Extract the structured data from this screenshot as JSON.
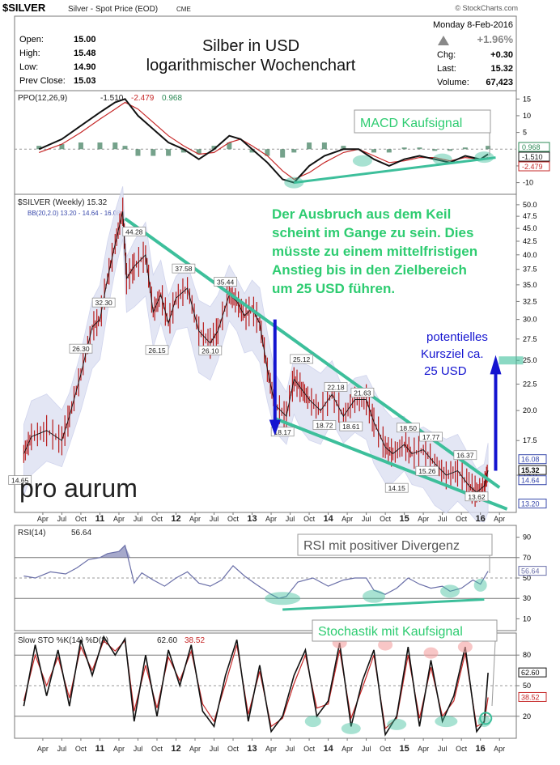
{
  "header": {
    "symbol": "$SILVER",
    "description": "Silver - Spot Price (EOD)",
    "exchange": "CME",
    "source": "© StockCharts.com",
    "date": "Monday  8-Feb-2016",
    "change_pct": "+1.96%",
    "chart_title_line1": "Silber in USD",
    "chart_title_line2": "logarithmischer Wochenchart",
    "stats_left": [
      {
        "label": "Open:",
        "value": "15.00"
      },
      {
        "label": "High:",
        "value": "15.48"
      },
      {
        "label": "Low:",
        "value": "14.90"
      },
      {
        "label": "Prev Close:",
        "value": "15.03"
      }
    ],
    "stats_right": [
      {
        "label": "Chg:",
        "value": "+0.30"
      },
      {
        "label": "Last:",
        "value": "15.32"
      },
      {
        "label": "Volume:",
        "value": "67,423"
      }
    ]
  },
  "logo": "pro aurum",
  "colors": {
    "price": "#b71c1c",
    "annotation_green": "#3dbf9b",
    "annotation_text": "#2ecc71",
    "target_blue": "#1414d0",
    "bb_fill": "#dde0f2",
    "rsi_line": "#6a6fa8"
  },
  "chart_data": [
    {
      "type": "bar",
      "panel": "ppo",
      "label": "PPO(12,26,9)",
      "legend_values": [
        "-1.510",
        "-2.479",
        "0.968"
      ],
      "ylim": [
        -13,
        17
      ],
      "y_ticks": [
        -10,
        -5,
        5,
        10,
        15
      ],
      "axis_badges": [
        "0.968",
        "-1.510",
        "-2.479"
      ],
      "annotation": "MACD Kaufsignal",
      "series": [
        {
          "name": "PPO",
          "x": [
            2010.2,
            2010.5,
            2010.75,
            2011.0,
            2011.2,
            2011.33,
            2011.5,
            2011.7,
            2011.9,
            2012.1,
            2012.3,
            2012.5,
            2012.7,
            2012.85,
            2013.0,
            2013.2,
            2013.4,
            2013.55,
            2013.75,
            2013.95,
            2014.2,
            2014.4,
            2014.6,
            2014.8,
            2015.0,
            2015.2,
            2015.4,
            2015.6,
            2015.8,
            2016.0,
            2016.1
          ],
          "values": [
            0,
            3,
            7,
            11,
            14,
            15,
            10,
            6,
            2,
            0,
            -3,
            0,
            4,
            3,
            0,
            -4,
            -9,
            -10,
            -5,
            -2,
            0,
            0,
            -3,
            -5,
            -3,
            -2,
            -3,
            -4,
            -2,
            -3,
            -1.5
          ]
        },
        {
          "name": "Signal",
          "x": [
            2010.2,
            2010.5,
            2010.75,
            2011.0,
            2011.2,
            2011.33,
            2011.5,
            2011.7,
            2011.9,
            2012.1,
            2012.3,
            2012.5,
            2012.7,
            2012.85,
            2013.0,
            2013.2,
            2013.4,
            2013.55,
            2013.75,
            2013.95,
            2014.2,
            2014.4,
            2014.6,
            2014.8,
            2015.0,
            2015.2,
            2015.4,
            2015.6,
            2015.8,
            2016.0,
            2016.1
          ],
          "values": [
            -1,
            1.5,
            5,
            9,
            12,
            14,
            12,
            8,
            4,
            1,
            -1.5,
            -1,
            2,
            3,
            1,
            -2,
            -6.5,
            -9,
            -7,
            -4,
            -1,
            0,
            -2,
            -4,
            -3.5,
            -2.5,
            -2.5,
            -3.5,
            -2.5,
            -3,
            -2.5
          ]
        },
        {
          "name": "Histogram",
          "x": [
            2010.2,
            2010.5,
            2010.75,
            2011.0,
            2011.2,
            2011.33,
            2011.5,
            2011.7,
            2011.9,
            2012.1,
            2012.3,
            2012.5,
            2012.7,
            2012.85,
            2013.0,
            2013.2,
            2013.4,
            2013.55,
            2013.75,
            2013.95,
            2014.2,
            2014.4,
            2014.6,
            2014.8,
            2015.0,
            2015.2,
            2015.4,
            2015.6,
            2015.8,
            2016.0,
            2016.1
          ],
          "values": [
            1,
            1.5,
            2,
            2,
            2,
            1,
            -2,
            -2,
            -2,
            -1,
            -1.5,
            1,
            2,
            0,
            -1,
            -2,
            -2.5,
            -1,
            2,
            2,
            1,
            0,
            -1,
            -1,
            0.5,
            0.5,
            -0.5,
            -0.5,
            0.5,
            0,
            1
          ]
        }
      ]
    },
    {
      "type": "line",
      "panel": "price",
      "label": "$SILVER (Weekly) 15.32",
      "bb_label": "BB(20,2.0) 13.20 - 14.64 - 16.08",
      "ylim": [
        12.8,
        52
      ],
      "scale": "log",
      "y_ticks": [
        50,
        47.5,
        45,
        42.5,
        40,
        37.5,
        35,
        32.5,
        30,
        27.5,
        25,
        22.5,
        20,
        17.5,
        15
      ],
      "axis_badges": [
        "16.08",
        "15.32",
        "14.64",
        "13.20"
      ],
      "x_ticks": [
        "Apr",
        "Jul",
        "Oct",
        "11",
        "Apr",
        "Jul",
        "Oct",
        "12",
        "Apr",
        "Jul",
        "Oct",
        "13",
        "Apr",
        "Jul",
        "Oct",
        "14",
        "Apr",
        "Jul",
        "Oct",
        "15",
        "Apr",
        "Jul",
        "Oct",
        "16",
        "Apr"
      ],
      "series": [
        {
          "name": "Close",
          "x": [
            2010.0,
            2010.1,
            2010.3,
            2010.5,
            2010.6,
            2010.75,
            2010.9,
            2011.0,
            2011.1,
            2011.2,
            2011.3,
            2011.35,
            2011.45,
            2011.6,
            2011.7,
            2011.8,
            2011.9,
            2012.0,
            2012.15,
            2012.3,
            2012.45,
            2012.55,
            2012.7,
            2012.8,
            2012.9,
            2013.0,
            2013.1,
            2013.2,
            2013.3,
            2013.45,
            2013.55,
            2013.65,
            2013.75,
            2013.9,
            2014.05,
            2014.2,
            2014.35,
            2014.5,
            2014.6,
            2014.75,
            2014.85,
            2015.0,
            2015.1,
            2015.25,
            2015.4,
            2015.55,
            2015.7,
            2015.85,
            2015.95,
            2016.05,
            2016.1
          ],
          "values": [
            16.5,
            17.8,
            18.3,
            17.5,
            19.5,
            23.5,
            29.0,
            30.0,
            36.0,
            42.0,
            48.5,
            36.0,
            38.0,
            40.0,
            31.0,
            33.5,
            29.5,
            33.0,
            34.5,
            28.5,
            27.0,
            28.5,
            33.5,
            32.5,
            30.5,
            31.5,
            29.5,
            24.0,
            20.5,
            19.5,
            23.0,
            22.0,
            21.0,
            20.0,
            21.5,
            19.5,
            21.0,
            21.0,
            19.0,
            17.0,
            16.5,
            17.2,
            16.5,
            16.8,
            15.8,
            15.0,
            15.3,
            14.3,
            13.9,
            14.3,
            15.32
          ]
        }
      ],
      "swing_labels": [
        "44.28",
        "37.58",
        "35.44",
        "32.30",
        "26.30",
        "26.15",
        "26.10",
        "25.12",
        "22.18",
        "21.63",
        "18.17",
        "18.72",
        "18.61",
        "18.50",
        "17.77",
        "16.37",
        "15.26",
        "14.15",
        "13.62",
        "14.65"
      ],
      "annotations": [
        "Der Ausbruch aus dem Keil scheint im Gange zu sein. Dies müsste zu einem mittelfristigen Anstieg bis in den Zielbereich um 25 USD führen.",
        "potentielles Kursziel ca. 25 USD"
      ],
      "trendlines": [
        {
          "name": "upper",
          "from": [
            2011.33,
            47.0
          ],
          "to": [
            2016.25,
            14.2
          ]
        },
        {
          "name": "lower",
          "from": [
            2013.3,
            19.3
          ],
          "to": [
            2016.35,
            12.9
          ]
        }
      ]
    },
    {
      "type": "line",
      "panel": "rsi",
      "label": "RSI(14)",
      "legend_value": "56.64",
      "ylim": [
        0,
        100
      ],
      "y_ticks": [
        90,
        70,
        50,
        30,
        10
      ],
      "axis_badge": "56.64",
      "annotation": "RSI mit positiver Divergenz",
      "series": [
        {
          "name": "RSI",
          "x": [
            2010.0,
            2010.15,
            2010.35,
            2010.55,
            2010.7,
            2010.85,
            2011.0,
            2011.1,
            2011.25,
            2011.33,
            2011.45,
            2011.55,
            2011.7,
            2011.85,
            2012.0,
            2012.15,
            2012.3,
            2012.45,
            2012.6,
            2012.75,
            2012.9,
            2013.05,
            2013.25,
            2013.35,
            2013.45,
            2013.6,
            2013.8,
            2014.0,
            2014.2,
            2014.35,
            2014.5,
            2014.6,
            2014.75,
            2014.9,
            2015.05,
            2015.2,
            2015.35,
            2015.5,
            2015.6,
            2015.75,
            2015.9,
            2016.0,
            2016.1
          ],
          "values": [
            52,
            50,
            56,
            54,
            60,
            68,
            70,
            74,
            76,
            82,
            45,
            55,
            48,
            42,
            50,
            56,
            45,
            42,
            48,
            62,
            52,
            44,
            34,
            30,
            32,
            46,
            50,
            42,
            48,
            50,
            50,
            38,
            34,
            40,
            50,
            44,
            40,
            42,
            37,
            40,
            48,
            44,
            56.64
          ]
        }
      ]
    },
    {
      "type": "line",
      "panel": "stochastic",
      "label": "Slow STO %K(14) %D(3)",
      "legend_values": [
        "62.60",
        "38.52"
      ],
      "ylim": [
        0,
        100
      ],
      "y_ticks": [
        80,
        50,
        20
      ],
      "axis_badges": [
        "62.60",
        "38.52"
      ],
      "annotation": "Stochastik mit Kaufsignal",
      "series": [
        {
          "name": "%K",
          "x": [
            2010.0,
            2010.15,
            2010.3,
            2010.45,
            2010.6,
            2010.75,
            2010.9,
            2011.05,
            2011.2,
            2011.33,
            2011.45,
            2011.6,
            2011.75,
            2011.9,
            2012.05,
            2012.2,
            2012.35,
            2012.5,
            2012.65,
            2012.8,
            2012.95,
            2013.1,
            2013.25,
            2013.4,
            2013.55,
            2013.7,
            2013.85,
            2014.0,
            2014.15,
            2014.3,
            2014.45,
            2014.6,
            2014.75,
            2014.9,
            2015.05,
            2015.2,
            2015.35,
            2015.5,
            2015.65,
            2015.8,
            2015.95,
            2016.05,
            2016.1
          ],
          "values": [
            30,
            90,
            40,
            85,
            30,
            95,
            60,
            98,
            80,
            96,
            15,
            80,
            20,
            85,
            50,
            90,
            25,
            10,
            60,
            95,
            15,
            70,
            5,
            20,
            60,
            85,
            20,
            35,
            92,
            10,
            55,
            85,
            2,
            20,
            88,
            10,
            75,
            15,
            40,
            88,
            5,
            15,
            62.6
          ]
        },
        {
          "name": "%D",
          "x": [
            2010.0,
            2010.15,
            2010.3,
            2010.45,
            2010.6,
            2010.75,
            2010.9,
            2011.05,
            2011.2,
            2011.33,
            2011.45,
            2011.6,
            2011.75,
            2011.9,
            2012.05,
            2012.2,
            2012.35,
            2012.5,
            2012.65,
            2012.8,
            2012.95,
            2013.1,
            2013.25,
            2013.4,
            2013.55,
            2013.7,
            2013.85,
            2014.0,
            2014.15,
            2014.3,
            2014.45,
            2014.6,
            2014.75,
            2014.9,
            2015.05,
            2015.2,
            2015.35,
            2015.5,
            2015.65,
            2015.8,
            2015.95,
            2016.05,
            2016.1
          ],
          "values": [
            35,
            80,
            50,
            78,
            38,
            88,
            65,
            94,
            84,
            94,
            25,
            70,
            28,
            78,
            55,
            84,
            32,
            15,
            52,
            90,
            22,
            64,
            10,
            18,
            52,
            80,
            28,
            32,
            85,
            18,
            48,
            80,
            8,
            18,
            80,
            18,
            68,
            20,
            35,
            82,
            10,
            14,
            38.52
          ]
        }
      ]
    }
  ]
}
